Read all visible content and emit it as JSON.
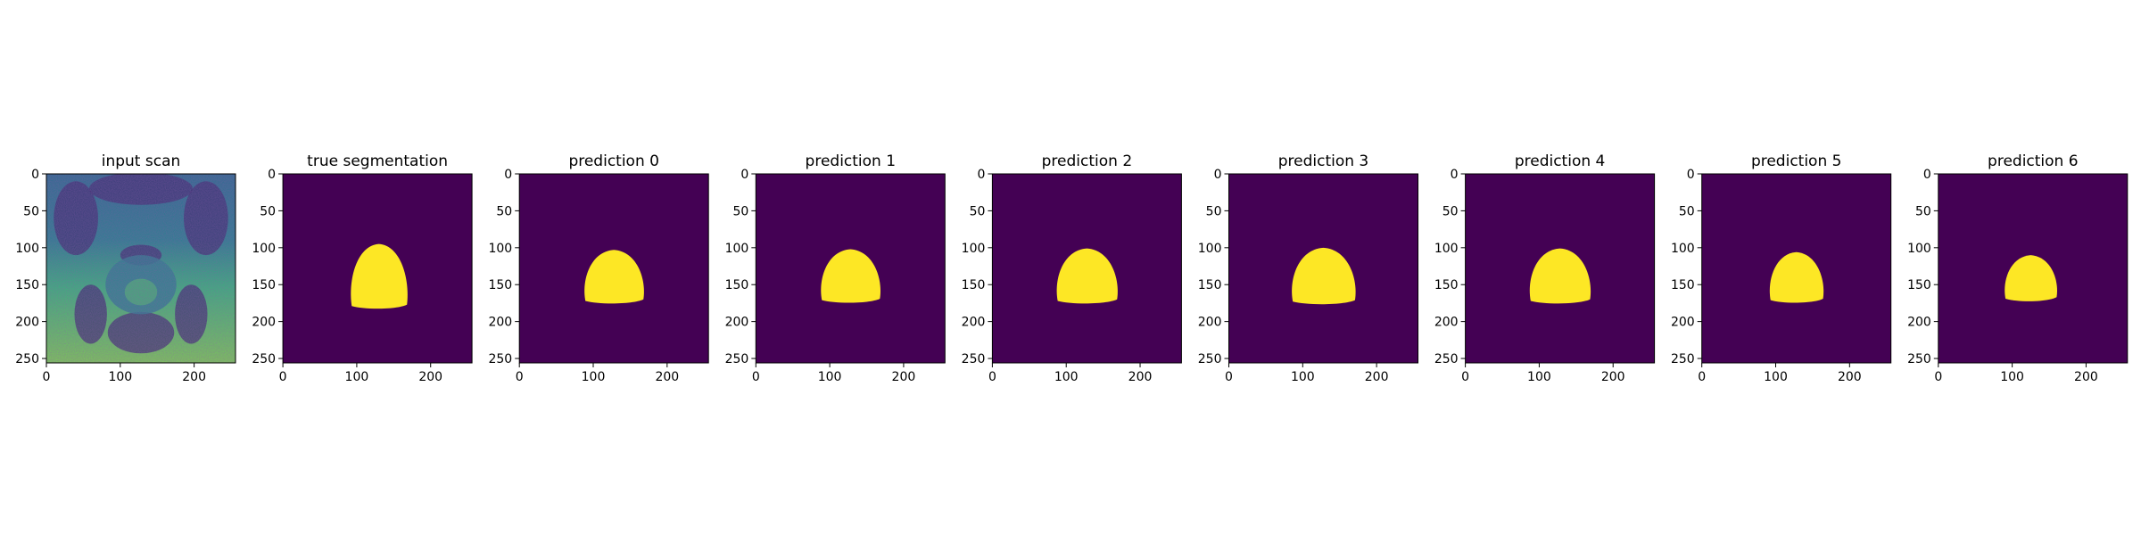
{
  "figure": {
    "colors": {
      "background": "#440154",
      "mask": "#fde725",
      "axis": "#000000",
      "scan_dark": "#3b2c6e",
      "scan_mid": "#2c7f8e",
      "scan_light": "#49c16d"
    },
    "axis": {
      "xlim": [
        0,
        256
      ],
      "ylim": [
        256,
        0
      ],
      "xticks": [
        "0",
        "100",
        "200"
      ],
      "yticks": [
        "0",
        "50",
        "100",
        "150",
        "200",
        "250"
      ]
    },
    "panels": [
      {
        "title": "input scan",
        "type": "scan"
      },
      {
        "title": "true segmentation",
        "type": "mask",
        "region": {
          "cx": 130,
          "cy": 140,
          "rx": 40,
          "ry": 43,
          "top": 95,
          "bottom": 183
        }
      },
      {
        "title": "prediction 0",
        "type": "mask",
        "region": {
          "cx": 128,
          "cy": 140,
          "rx": 42,
          "ry": 36,
          "top": 103,
          "bottom": 176
        }
      },
      {
        "title": "prediction 1",
        "type": "mask",
        "region": {
          "cx": 128,
          "cy": 139,
          "rx": 42,
          "ry": 36,
          "top": 102,
          "bottom": 175
        }
      },
      {
        "title": "prediction 2",
        "type": "mask",
        "region": {
          "cx": 128,
          "cy": 139,
          "rx": 43,
          "ry": 37,
          "top": 101,
          "bottom": 176
        }
      },
      {
        "title": "prediction 3",
        "type": "mask",
        "region": {
          "cx": 128,
          "cy": 139,
          "rx": 45,
          "ry": 38,
          "top": 100,
          "bottom": 177
        }
      },
      {
        "title": "prediction 4",
        "type": "mask",
        "region": {
          "cx": 128,
          "cy": 139,
          "rx": 43,
          "ry": 37,
          "top": 101,
          "bottom": 176
        }
      },
      {
        "title": "prediction 5",
        "type": "mask",
        "region": {
          "cx": 128,
          "cy": 139,
          "rx": 38,
          "ry": 34,
          "top": 106,
          "bottom": 175
        }
      },
      {
        "title": "prediction 6",
        "type": "mask",
        "region": {
          "cx": 125,
          "cy": 140,
          "rx": 37,
          "ry": 30,
          "top": 110,
          "bottom": 173
        }
      }
    ]
  }
}
